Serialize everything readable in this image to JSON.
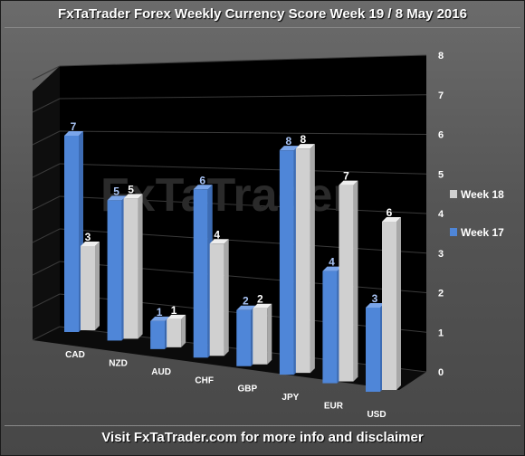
{
  "title": "FxTaTrader Forex Weekly Currency Score Week 19 / 8 May 2016",
  "footer": "Visit FxTaTrader.com for more info and disclaimer",
  "watermark": "FxTaTrader",
  "colors": {
    "week17": "#4f86d8",
    "week18": "#d0d0d0",
    "label17": "#a9c4f5",
    "label18": "#ffffff"
  },
  "chart_data": {
    "type": "bar",
    "categories": [
      "CAD",
      "NZD",
      "AUD",
      "CHF",
      "GBP",
      "JPY",
      "EUR",
      "USD"
    ],
    "series": [
      {
        "name": "Week 17",
        "values": [
          7,
          5,
          1,
          6,
          2,
          8,
          4,
          3
        ]
      },
      {
        "name": "Week 18",
        "values": [
          3,
          5,
          1,
          4,
          2,
          8,
          7,
          6
        ]
      }
    ],
    "ylim": [
      0,
      8
    ],
    "yticks": [
      "0",
      "1",
      "2",
      "3",
      "4",
      "5",
      "6",
      "7",
      "8"
    ],
    "legend_position": "right",
    "data_labels": true
  }
}
